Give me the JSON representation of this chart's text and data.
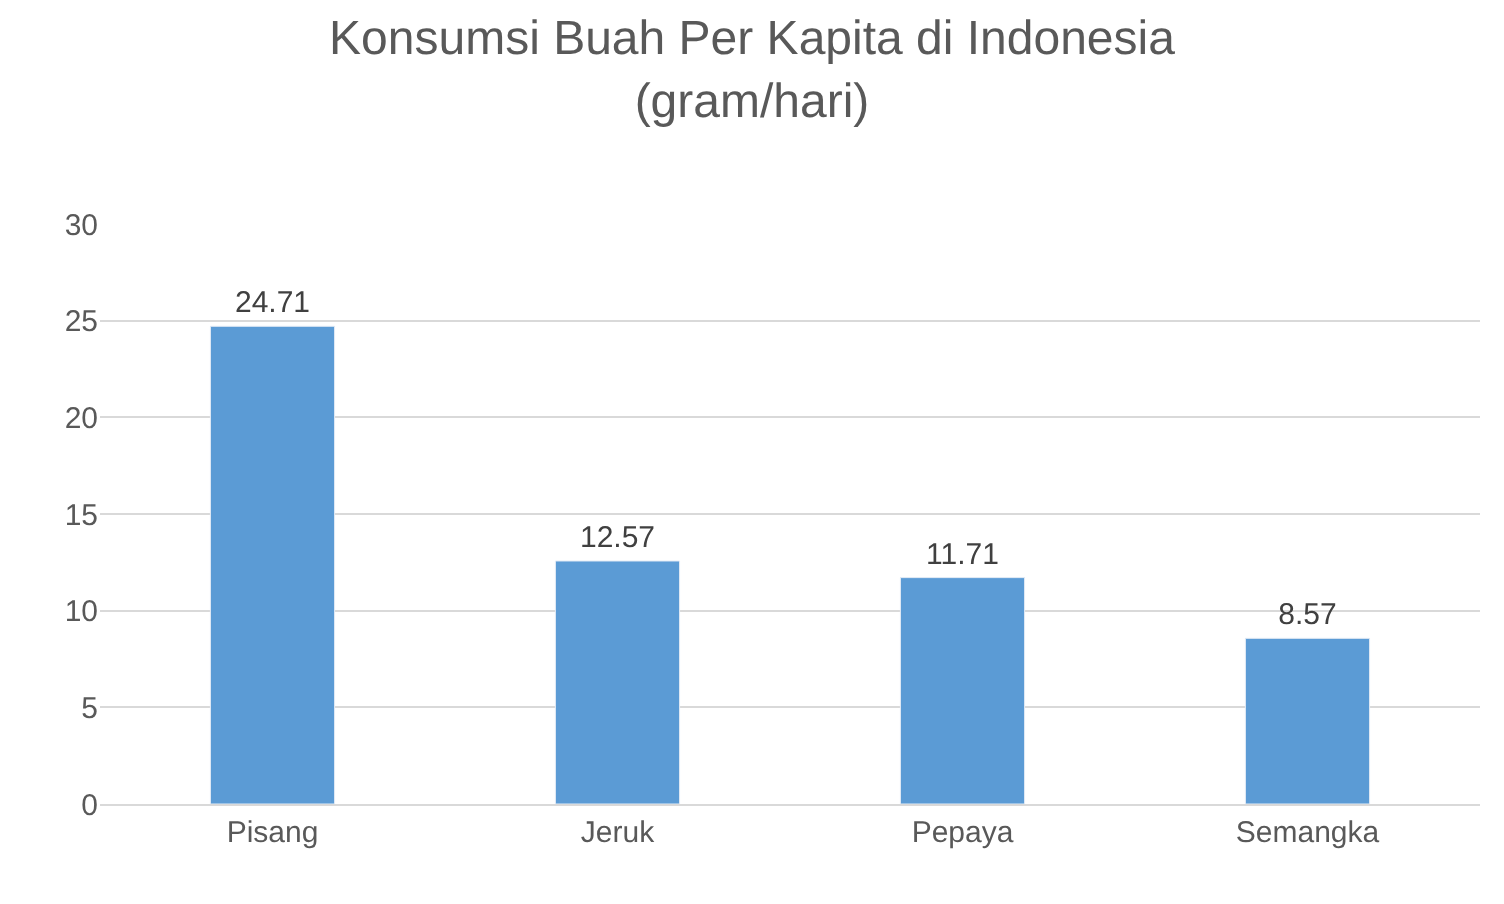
{
  "chart_data": {
    "type": "bar",
    "title": "Konsumsi Buah Per Kapita di Indonesia\n(gram/hari)",
    "categories": [
      "Pisang",
      "Jeruk",
      "Pepaya",
      "Semangka"
    ],
    "values": [
      24.71,
      12.57,
      11.71,
      8.57
    ],
    "color": "#5b9bd5",
    "ylim": [
      0,
      30
    ],
    "yticks": [
      0,
      5,
      10,
      15,
      20,
      25,
      30
    ],
    "grid": "y",
    "data_labels": true,
    "legend": false
  }
}
